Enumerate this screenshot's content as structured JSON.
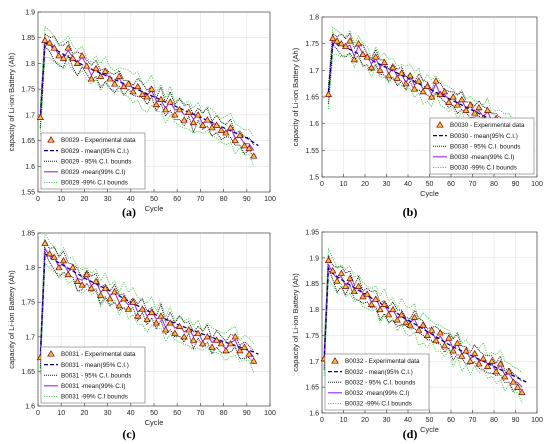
{
  "chart_data": [
    {
      "type": "line",
      "panel_label": "(a)",
      "xlabel": "Cycle",
      "ylabel": "capacity of Li-ion Battery (Ah)",
      "xlim": [
        0,
        100
      ],
      "ylim": [
        1.55,
        1.9
      ],
      "xticks": [
        "0",
        "10",
        "20",
        "30",
        "40",
        "50",
        "60",
        "70",
        "80",
        "90",
        "100"
      ],
      "yticks": [
        "1.55",
        "1.6",
        "1.65",
        "1.7",
        "1.75",
        "1.8",
        "1.85",
        "1.9"
      ],
      "legend_position": "bottom-left",
      "legend": [
        "B0029 - Experimental data",
        "B0029 - mean(95% C.I.)",
        "B0029 - 95% C.I. bounds",
        "B0029 -mean(99% C.I)",
        "B0029 -99% C.I bounds"
      ],
      "series": [
        {
          "name": "B0029 - Experimental data",
          "x": [
            1,
            3,
            5,
            7,
            9,
            11,
            13,
            15,
            17,
            19,
            21,
            23,
            25,
            27,
            29,
            31,
            33,
            35,
            37,
            39,
            41,
            43,
            45,
            47,
            49,
            51,
            53,
            55,
            57,
            59,
            61,
            63,
            65,
            67,
            69,
            71,
            73,
            75,
            77,
            79,
            81,
            83,
            85,
            87,
            89,
            91,
            93
          ],
          "y": [
            1.695,
            1.845,
            1.84,
            1.83,
            1.815,
            1.81,
            1.83,
            1.81,
            1.8,
            1.815,
            1.795,
            1.77,
            1.79,
            1.775,
            1.785,
            1.77,
            1.76,
            1.775,
            1.755,
            1.76,
            1.745,
            1.755,
            1.74,
            1.735,
            1.75,
            1.72,
            1.73,
            1.71,
            1.725,
            1.7,
            1.71,
            1.69,
            1.705,
            1.685,
            1.7,
            1.68,
            1.69,
            1.675,
            1.68,
            1.67,
            1.665,
            1.675,
            1.65,
            1.66,
            1.64,
            1.635,
            1.62
          ]
        },
        {
          "name": "B0029 - mean(95% C.I.)",
          "x": [
            1,
            3,
            5,
            10,
            20,
            30,
            40,
            50,
            60,
            70,
            80,
            90,
            95
          ],
          "y": [
            1.69,
            1.84,
            1.835,
            1.82,
            1.795,
            1.775,
            1.755,
            1.735,
            1.715,
            1.695,
            1.675,
            1.655,
            1.64
          ]
        }
      ]
    },
    {
      "type": "line",
      "panel_label": "(b)",
      "xlabel": "Cycle",
      "ylabel": "capacity of Li-ion Battery (Ah)",
      "xlim": [
        0,
        100
      ],
      "ylim": [
        1.5,
        1.8
      ],
      "xticks": [
        "0",
        "10",
        "20",
        "30",
        "40",
        "50",
        "60",
        "70",
        "80",
        "90",
        "100"
      ],
      "yticks": [
        "1.5",
        "1.55",
        "1.6",
        "1.65",
        "1.7",
        "1.75",
        "1.8"
      ],
      "legend_position": "bottom-right",
      "legend": [
        "B0030 - Experimental data",
        "B0030 - mean(95% C.I.)",
        "B0030 - 95% C.I. bounds",
        "B0030 -mean(99% C.I)",
        "B0030 -99% C.I bounds"
      ],
      "series": [
        {
          "name": "B0030 - Experimental data",
          "x": [
            3,
            5,
            7,
            9,
            11,
            13,
            15,
            17,
            19,
            21,
            23,
            25,
            27,
            29,
            31,
            33,
            35,
            37,
            39,
            41,
            43,
            45,
            47,
            49,
            51,
            53,
            55,
            57,
            59,
            61,
            63,
            65,
            67,
            69,
            71,
            73,
            75,
            77,
            79,
            81,
            83,
            85,
            87,
            89,
            91,
            93
          ],
          "y": [
            1.655,
            1.76,
            1.755,
            1.75,
            1.745,
            1.755,
            1.72,
            1.75,
            1.73,
            1.725,
            1.705,
            1.725,
            1.7,
            1.715,
            1.69,
            1.705,
            1.685,
            1.695,
            1.675,
            1.69,
            1.665,
            1.68,
            1.66,
            1.67,
            1.65,
            1.68,
            1.655,
            1.66,
            1.64,
            1.65,
            1.635,
            1.645,
            1.625,
            1.635,
            1.62,
            1.63,
            1.61,
            1.625,
            1.6,
            1.61,
            1.6,
            1.59,
            1.6,
            1.58,
            1.575,
            1.565
          ]
        },
        {
          "name": "B0030 - mean(95% C.I.)",
          "x": [
            3,
            5,
            10,
            20,
            30,
            40,
            50,
            60,
            70,
            80,
            90,
            95
          ],
          "y": [
            1.66,
            1.75,
            1.745,
            1.725,
            1.705,
            1.685,
            1.665,
            1.645,
            1.625,
            1.605,
            1.585,
            1.575
          ]
        }
      ]
    },
    {
      "type": "line",
      "panel_label": "(c)",
      "xlabel": "Cycle",
      "ylabel": "capacity of Li-ion Battery (Ah)",
      "xlim": [
        0,
        100
      ],
      "ylim": [
        1.6,
        1.85
      ],
      "xticks": [
        "0",
        "10",
        "20",
        "30",
        "40",
        "50",
        "60",
        "70",
        "80",
        "90",
        "100"
      ],
      "yticks": [
        "1.6",
        "1.65",
        "1.7",
        "1.75",
        "1.8",
        "1.85"
      ],
      "legend_position": "bottom-left",
      "legend": [
        "B0031 - Experimental data",
        "B0031 - mean(95% C.I.)",
        "B0031 - 95% C.I. bounds",
        "B0031 -mean(99% C.I)",
        "B0031 -99% C.I bounds"
      ],
      "series": [
        {
          "name": "B0031 - Experimental data",
          "x": [
            1,
            3,
            5,
            7,
            9,
            11,
            13,
            15,
            17,
            19,
            21,
            23,
            25,
            27,
            29,
            31,
            33,
            35,
            37,
            39,
            41,
            43,
            45,
            47,
            49,
            51,
            53,
            55,
            57,
            59,
            61,
            63,
            65,
            67,
            69,
            71,
            73,
            75,
            77,
            79,
            81,
            83,
            85,
            87,
            89,
            91,
            93
          ],
          "y": [
            1.67,
            1.835,
            1.82,
            1.815,
            1.8,
            1.81,
            1.79,
            1.8,
            1.78,
            1.775,
            1.79,
            1.77,
            1.78,
            1.76,
            1.77,
            1.755,
            1.765,
            1.745,
            1.755,
            1.74,
            1.75,
            1.73,
            1.74,
            1.725,
            1.735,
            1.72,
            1.73,
            1.71,
            1.72,
            1.705,
            1.715,
            1.7,
            1.71,
            1.695,
            1.705,
            1.69,
            1.7,
            1.685,
            1.695,
            1.69,
            1.68,
            1.69,
            1.7,
            1.68,
            1.685,
            1.675,
            1.665
          ]
        },
        {
          "name": "B0031 - mean(95% C.I.)",
          "x": [
            1,
            3,
            5,
            10,
            20,
            30,
            40,
            50,
            60,
            70,
            80,
            90,
            95
          ],
          "y": [
            1.67,
            1.82,
            1.815,
            1.805,
            1.785,
            1.768,
            1.75,
            1.733,
            1.718,
            1.705,
            1.693,
            1.682,
            1.675
          ]
        }
      ]
    },
    {
      "type": "line",
      "panel_label": "(d)",
      "xlabel": "Cycle",
      "ylabel": "capacity of Li-ion Battery (Ah)",
      "xlim": [
        0,
        100
      ],
      "ylim": [
        1.6,
        1.95
      ],
      "xticks": [
        "0",
        "10",
        "20",
        "30",
        "40",
        "50",
        "60",
        "70",
        "80",
        "90",
        "100"
      ],
      "yticks": [
        "1.6",
        "1.65",
        "1.7",
        "1.75",
        "1.8",
        "1.85",
        "1.9",
        "1.95"
      ],
      "legend_position": "bottom-left",
      "legend": [
        "B0032 - Experimental data",
        "B0032 - mean(95% C.I.)",
        "B0032 - 95% C.I. bounds",
        "B0032 -mean(99% C.I)",
        "B0032 -99% C.I bounds"
      ],
      "series": [
        {
          "name": "B0032 - Experimental data",
          "x": [
            1,
            3,
            5,
            7,
            9,
            11,
            13,
            15,
            17,
            19,
            21,
            23,
            25,
            27,
            29,
            31,
            33,
            35,
            37,
            39,
            41,
            43,
            45,
            47,
            49,
            51,
            53,
            55,
            57,
            59,
            61,
            63,
            65,
            67,
            69,
            71,
            73,
            75,
            77,
            79,
            81,
            83,
            85,
            87,
            89,
            91,
            93
          ],
          "y": [
            1.705,
            1.895,
            1.875,
            1.855,
            1.87,
            1.845,
            1.86,
            1.835,
            1.845,
            1.825,
            1.83,
            1.81,
            1.82,
            1.8,
            1.81,
            1.79,
            1.8,
            1.78,
            1.79,
            1.775,
            1.77,
            1.785,
            1.76,
            1.77,
            1.75,
            1.76,
            1.74,
            1.755,
            1.73,
            1.745,
            1.72,
            1.735,
            1.71,
            1.72,
            1.7,
            1.715,
            1.695,
            1.705,
            1.69,
            1.7,
            1.68,
            1.695,
            1.67,
            1.68,
            1.66,
            1.65,
            1.64
          ]
        },
        {
          "name": "B0032 - mean(95% C.I.)",
          "x": [
            1,
            3,
            5,
            10,
            20,
            30,
            40,
            50,
            60,
            70,
            80,
            90,
            95
          ],
          "y": [
            1.7,
            1.88,
            1.87,
            1.855,
            1.83,
            1.805,
            1.78,
            1.755,
            1.73,
            1.71,
            1.69,
            1.67,
            1.66
          ]
        }
      ]
    }
  ]
}
